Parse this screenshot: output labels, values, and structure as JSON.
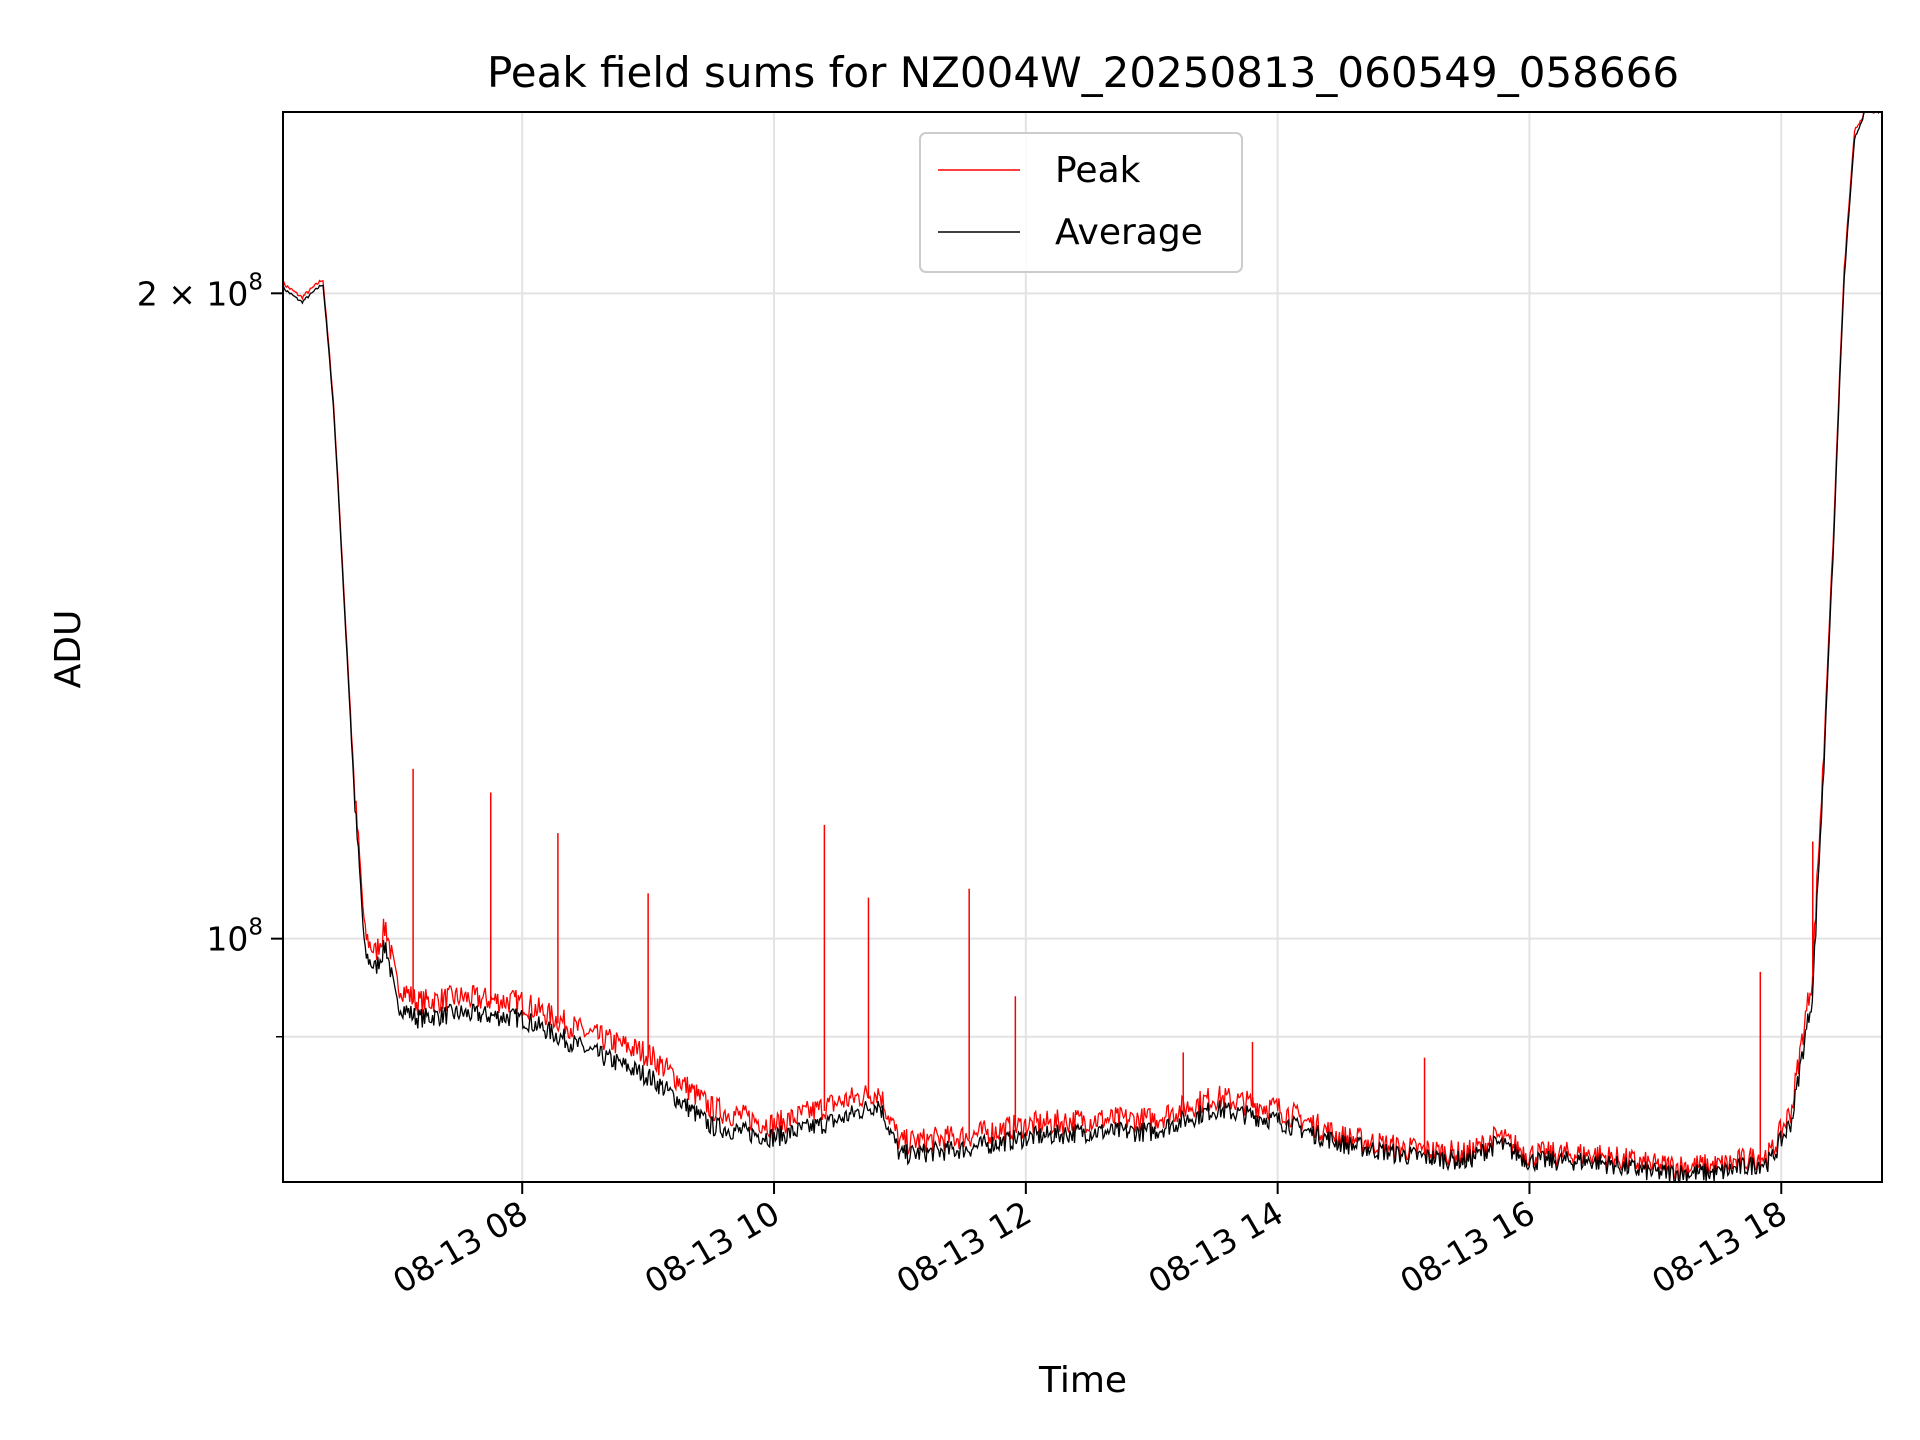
{
  "chart_data": {
    "type": "line",
    "title": "Peak field sums for NZ004W_20250813_060549_058666",
    "xlabel": "Time",
    "ylabel": "ADU",
    "xlim": [
      "2025-08-13T06:06",
      "2025-08-13T18:48"
    ],
    "ylim": [
      77000000,
      243000000
    ],
    "yscale": "log",
    "grid": true,
    "legend": "upper center",
    "x_ticks": [
      {
        "value": "2025-08-13T08:00",
        "label": "08-13 08"
      },
      {
        "value": "2025-08-13T10:00",
        "label": "08-13 10"
      },
      {
        "value": "2025-08-13T12:00",
        "label": "08-13 12"
      },
      {
        "value": "2025-08-13T14:00",
        "label": "08-13 14"
      },
      {
        "value": "2025-08-13T16:00",
        "label": "08-13 16"
      },
      {
        "value": "2025-08-13T18:00",
        "label": "08-13 18"
      }
    ],
    "y_major_ticks": [
      {
        "value": 100000000,
        "label_base": "10",
        "label_exp": "8"
      },
      {
        "value": 200000000,
        "label_base": "2 × 10",
        "label_exp": "8"
      }
    ],
    "y_minor_ticks": [
      90000000
    ],
    "x": [
      "2025-08-13T06:06",
      "2025-08-13T06:15",
      "2025-08-13T06:25",
      "2025-08-13T06:30",
      "2025-08-13T06:35",
      "2025-08-13T06:40",
      "2025-08-13T06:45",
      "2025-08-13T06:50",
      "2025-08-13T06:55",
      "2025-08-13T07:00",
      "2025-08-13T07:10",
      "2025-08-13T07:30",
      "2025-08-13T08:00",
      "2025-08-13T08:30",
      "2025-08-13T09:00",
      "2025-08-13T09:30",
      "2025-08-13T10:00",
      "2025-08-13T10:30",
      "2025-08-13T10:50",
      "2025-08-13T11:00",
      "2025-08-13T11:30",
      "2025-08-13T12:00",
      "2025-08-13T12:30",
      "2025-08-13T13:00",
      "2025-08-13T13:30",
      "2025-08-13T14:00",
      "2025-08-13T14:30",
      "2025-08-13T15:00",
      "2025-08-13T15:30",
      "2025-08-13T15:45",
      "2025-08-13T16:00",
      "2025-08-13T16:30",
      "2025-08-13T17:00",
      "2025-08-13T17:30",
      "2025-08-13T17:55",
      "2025-08-13T18:05",
      "2025-08-13T18:15",
      "2025-08-13T18:20",
      "2025-08-13T18:25",
      "2025-08-13T18:30",
      "2025-08-13T18:35",
      "2025-08-13T18:40",
      "2025-08-13T18:48"
    ],
    "series": [
      {
        "name": "Peak",
        "color": "#ff0000",
        "values": [
          202000000,
          199000000,
          203000000,
          178000000,
          145000000,
          117000000,
          100000000,
          98000000,
          101000000,
          95000000,
          93000000,
          93500000,
          93000000,
          90000000,
          88000000,
          83000000,
          81500000,
          83500000,
          84500000,
          80000000,
          80500000,
          81500000,
          82000000,
          82000000,
          84000000,
          83000000,
          80500000,
          79500000,
          79000000,
          80500000,
          79000000,
          79000000,
          78000000,
          78000000,
          79000000,
          83000000,
          96000000,
          120000000,
          155000000,
          205000000,
          238000000,
          243000000,
          243000000
        ],
        "spikes": [
          {
            "x": "2025-08-13T07:08",
            "y": 120000000
          },
          {
            "x": "2025-08-13T07:45",
            "y": 117000000
          },
          {
            "x": "2025-08-13T08:17",
            "y": 112000000
          },
          {
            "x": "2025-08-13T09:00",
            "y": 105000000
          },
          {
            "x": "2025-08-13T10:24",
            "y": 113000000
          },
          {
            "x": "2025-08-13T10:45",
            "y": 104500000
          },
          {
            "x": "2025-08-13T11:33",
            "y": 105500000
          },
          {
            "x": "2025-08-13T11:55",
            "y": 94000000
          },
          {
            "x": "2025-08-13T13:15",
            "y": 88500000
          },
          {
            "x": "2025-08-13T13:48",
            "y": 89500000
          },
          {
            "x": "2025-08-13T15:10",
            "y": 88000000
          },
          {
            "x": "2025-08-13T17:50",
            "y": 96500000
          },
          {
            "x": "2025-08-13T18:15",
            "y": 111000000
          }
        ]
      },
      {
        "name": "Average",
        "color": "#000000",
        "values": [
          201000000,
          198000000,
          202000000,
          177000000,
          144000000,
          116000000,
          98000000,
          96500000,
          99000000,
          93000000,
          91500000,
          92000000,
          91500000,
          88500000,
          86000000,
          81500000,
          80500000,
          82000000,
          83500000,
          79000000,
          79500000,
          80500000,
          81000000,
          81000000,
          83000000,
          82000000,
          80000000,
          79000000,
          78500000,
          80000000,
          78500000,
          78500000,
          77500000,
          77500000,
          78500000,
          82000000,
          94000000,
          118000000,
          153000000,
          203000000,
          236000000,
          243000000,
          243000000
        ]
      }
    ]
  }
}
